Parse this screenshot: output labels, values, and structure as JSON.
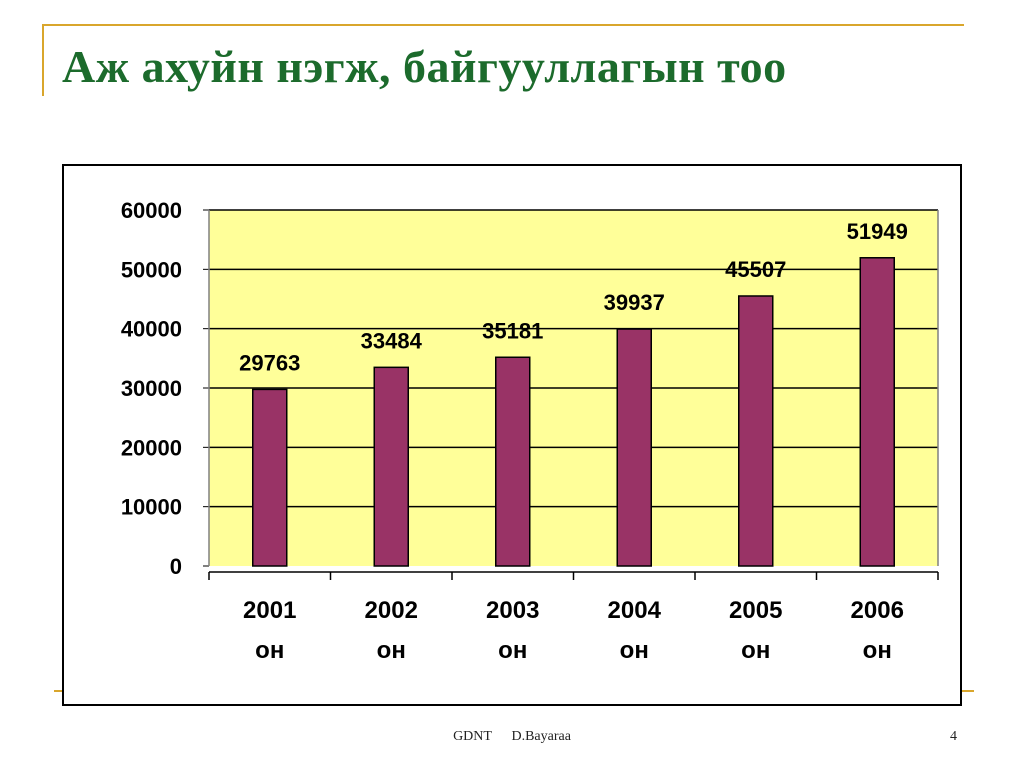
{
  "slide": {
    "title": "Аж ахуйн нэгж, байгууллагын тоо",
    "footer_org": "GDNT",
    "footer_author": "D.Bayaraa",
    "page_number": "4"
  },
  "colors": {
    "title": "#1c6b2c",
    "accent_line": "#d9a62c",
    "plot_bg": "#ffff99",
    "bar": "#993366"
  },
  "chart_data": {
    "type": "bar",
    "categories": [
      [
        "2001",
        "он"
      ],
      [
        "2002",
        "он"
      ],
      [
        "2003",
        "он"
      ],
      [
        "2004",
        "он"
      ],
      [
        "2005",
        "он"
      ],
      [
        "2006",
        "он"
      ]
    ],
    "values": [
      29763,
      33484,
      35181,
      39937,
      45507,
      51949
    ],
    "data_labels": [
      "29763",
      "33484",
      "35181",
      "39937",
      "45507",
      "51949"
    ],
    "yticks": [
      "0",
      "10000",
      "20000",
      "30000",
      "40000",
      "50000",
      "60000"
    ],
    "ylim": [
      0,
      60000
    ],
    "grid": true,
    "legend": "none"
  }
}
